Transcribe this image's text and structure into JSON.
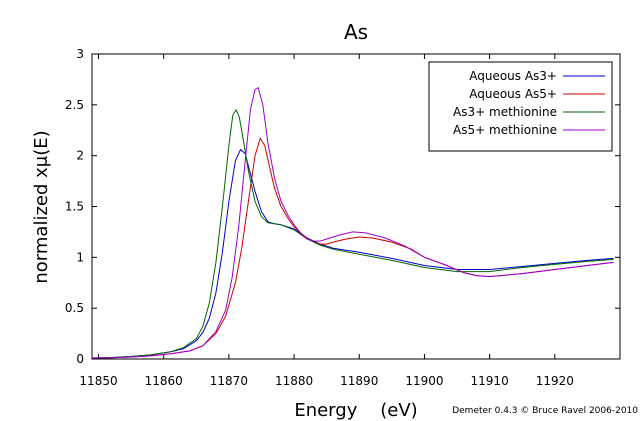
{
  "chart_data": {
    "type": "line",
    "title": "As",
    "xlabel": "Energy    (eV)",
    "ylabel": "normalized xμ(E)",
    "credit": "Demeter 0.4.3 © Bruce Ravel 2006-2010",
    "xlim": [
      11849,
      11930
    ],
    "ylim": [
      0,
      3
    ],
    "xticks": [
      11850,
      11860,
      11870,
      11880,
      11890,
      11900,
      11910,
      11920
    ],
    "yticks": [
      0,
      0.5,
      1,
      1.5,
      2,
      2.5,
      3
    ],
    "ytick_labels": [
      "0",
      "0.5",
      "1",
      "1.5",
      "2",
      "2.5",
      "3"
    ],
    "grid": false,
    "legend_position": "top-right",
    "series": [
      {
        "name": "Aqueous As3+",
        "color": "#0000cc",
        "points": [
          [
            11849,
            0.01
          ],
          [
            11852,
            0.015
          ],
          [
            11855,
            0.025
          ],
          [
            11858,
            0.04
          ],
          [
            11861,
            0.07
          ],
          [
            11863,
            0.1
          ],
          [
            11865,
            0.18
          ],
          [
            11866,
            0.26
          ],
          [
            11867,
            0.4
          ],
          [
            11868,
            0.65
          ],
          [
            11869,
            1.05
          ],
          [
            11870,
            1.55
          ],
          [
            11871,
            1.95
          ],
          [
            11871.8,
            2.06
          ],
          [
            11872.5,
            2.02
          ],
          [
            11873.2,
            1.85
          ],
          [
            11874,
            1.65
          ],
          [
            11875,
            1.45
          ],
          [
            11876,
            1.35
          ],
          [
            11877,
            1.33
          ],
          [
            11878,
            1.32
          ],
          [
            11880,
            1.28
          ],
          [
            11882,
            1.19
          ],
          [
            11884,
            1.13
          ],
          [
            11886,
            1.09
          ],
          [
            11890,
            1.05
          ],
          [
            11895,
            0.99
          ],
          [
            11900,
            0.92
          ],
          [
            11905,
            0.88
          ],
          [
            11910,
            0.88
          ],
          [
            11915,
            0.91
          ],
          [
            11920,
            0.94
          ],
          [
            11925,
            0.97
          ],
          [
            11929,
            0.99
          ]
        ]
      },
      {
        "name": "Aqueous As5+",
        "color": "#cc0000",
        "points": [
          [
            11849,
            0.01
          ],
          [
            11852,
            0.012
          ],
          [
            11855,
            0.02
          ],
          [
            11858,
            0.03
          ],
          [
            11861,
            0.05
          ],
          [
            11864,
            0.08
          ],
          [
            11866,
            0.13
          ],
          [
            11868,
            0.25
          ],
          [
            11869.5,
            0.42
          ],
          [
            11871,
            0.75
          ],
          [
            11872,
            1.1
          ],
          [
            11873,
            1.55
          ],
          [
            11874,
            2.0
          ],
          [
            11874.8,
            2.17
          ],
          [
            11875.5,
            2.1
          ],
          [
            11876.2,
            1.9
          ],
          [
            11877,
            1.68
          ],
          [
            11878,
            1.5
          ],
          [
            11879,
            1.39
          ],
          [
            11880,
            1.3
          ],
          [
            11881,
            1.24
          ],
          [
            11882,
            1.19
          ],
          [
            11883,
            1.15
          ],
          [
            11884,
            1.13
          ],
          [
            11885,
            1.13
          ],
          [
            11886,
            1.15
          ],
          [
            11888,
            1.18
          ],
          [
            11890,
            1.2
          ],
          [
            11892,
            1.19
          ],
          [
            11895,
            1.15
          ],
          [
            11898,
            1.08
          ],
          [
            11900,
            1.0
          ],
          [
            11903,
            0.93
          ],
          [
            11906,
            0.85
          ],
          [
            11908,
            0.82
          ],
          [
            11910,
            0.81
          ],
          [
            11915,
            0.84
          ],
          [
            11920,
            0.88
          ],
          [
            11925,
            0.92
          ],
          [
            11929,
            0.95
          ]
        ]
      },
      {
        "name": "As3+ methionine",
        "color": "#006600",
        "points": [
          [
            11849,
            0.01
          ],
          [
            11852,
            0.015
          ],
          [
            11855,
            0.025
          ],
          [
            11858,
            0.04
          ],
          [
            11861,
            0.07
          ],
          [
            11863,
            0.11
          ],
          [
            11865,
            0.2
          ],
          [
            11866,
            0.32
          ],
          [
            11867,
            0.55
          ],
          [
            11868,
            0.95
          ],
          [
            11869,
            1.5
          ],
          [
            11870,
            2.1
          ],
          [
            11870.6,
            2.4
          ],
          [
            11871.1,
            2.45
          ],
          [
            11871.6,
            2.38
          ],
          [
            11872.3,
            2.12
          ],
          [
            11873,
            1.85
          ],
          [
            11874,
            1.55
          ],
          [
            11875,
            1.4
          ],
          [
            11876,
            1.34
          ],
          [
            11877,
            1.33
          ],
          [
            11878,
            1.32
          ],
          [
            11880,
            1.27
          ],
          [
            11882,
            1.18
          ],
          [
            11884,
            1.12
          ],
          [
            11886,
            1.08
          ],
          [
            11890,
            1.03
          ],
          [
            11895,
            0.97
          ],
          [
            11900,
            0.9
          ],
          [
            11905,
            0.86
          ],
          [
            11910,
            0.86
          ],
          [
            11915,
            0.9
          ],
          [
            11920,
            0.93
          ],
          [
            11925,
            0.96
          ],
          [
            11929,
            0.98
          ]
        ]
      },
      {
        "name": "As5+ methionine",
        "color": "#9900cc",
        "points": [
          [
            11849,
            0.01
          ],
          [
            11852,
            0.012
          ],
          [
            11855,
            0.02
          ],
          [
            11858,
            0.03
          ],
          [
            11861,
            0.05
          ],
          [
            11864,
            0.08
          ],
          [
            11866,
            0.13
          ],
          [
            11868,
            0.27
          ],
          [
            11869.5,
            0.48
          ],
          [
            11870.5,
            0.8
          ],
          [
            11871.5,
            1.3
          ],
          [
            11872.5,
            1.95
          ],
          [
            11873.3,
            2.45
          ],
          [
            11874,
            2.65
          ],
          [
            11874.5,
            2.67
          ],
          [
            11875.2,
            2.5
          ],
          [
            11876,
            2.12
          ],
          [
            11877,
            1.78
          ],
          [
            11878,
            1.55
          ],
          [
            11879,
            1.42
          ],
          [
            11880,
            1.32
          ],
          [
            11881,
            1.24
          ],
          [
            11882,
            1.18
          ],
          [
            11883,
            1.16
          ],
          [
            11884,
            1.16
          ],
          [
            11885,
            1.18
          ],
          [
            11887,
            1.22
          ],
          [
            11889,
            1.25
          ],
          [
            11891,
            1.24
          ],
          [
            11894,
            1.19
          ],
          [
            11897,
            1.11
          ],
          [
            11900,
            1.0
          ],
          [
            11903,
            0.93
          ],
          [
            11906,
            0.85
          ],
          [
            11908,
            0.82
          ],
          [
            11910,
            0.81
          ],
          [
            11915,
            0.84
          ],
          [
            11920,
            0.88
          ],
          [
            11925,
            0.92
          ],
          [
            11929,
            0.95
          ]
        ]
      }
    ]
  }
}
